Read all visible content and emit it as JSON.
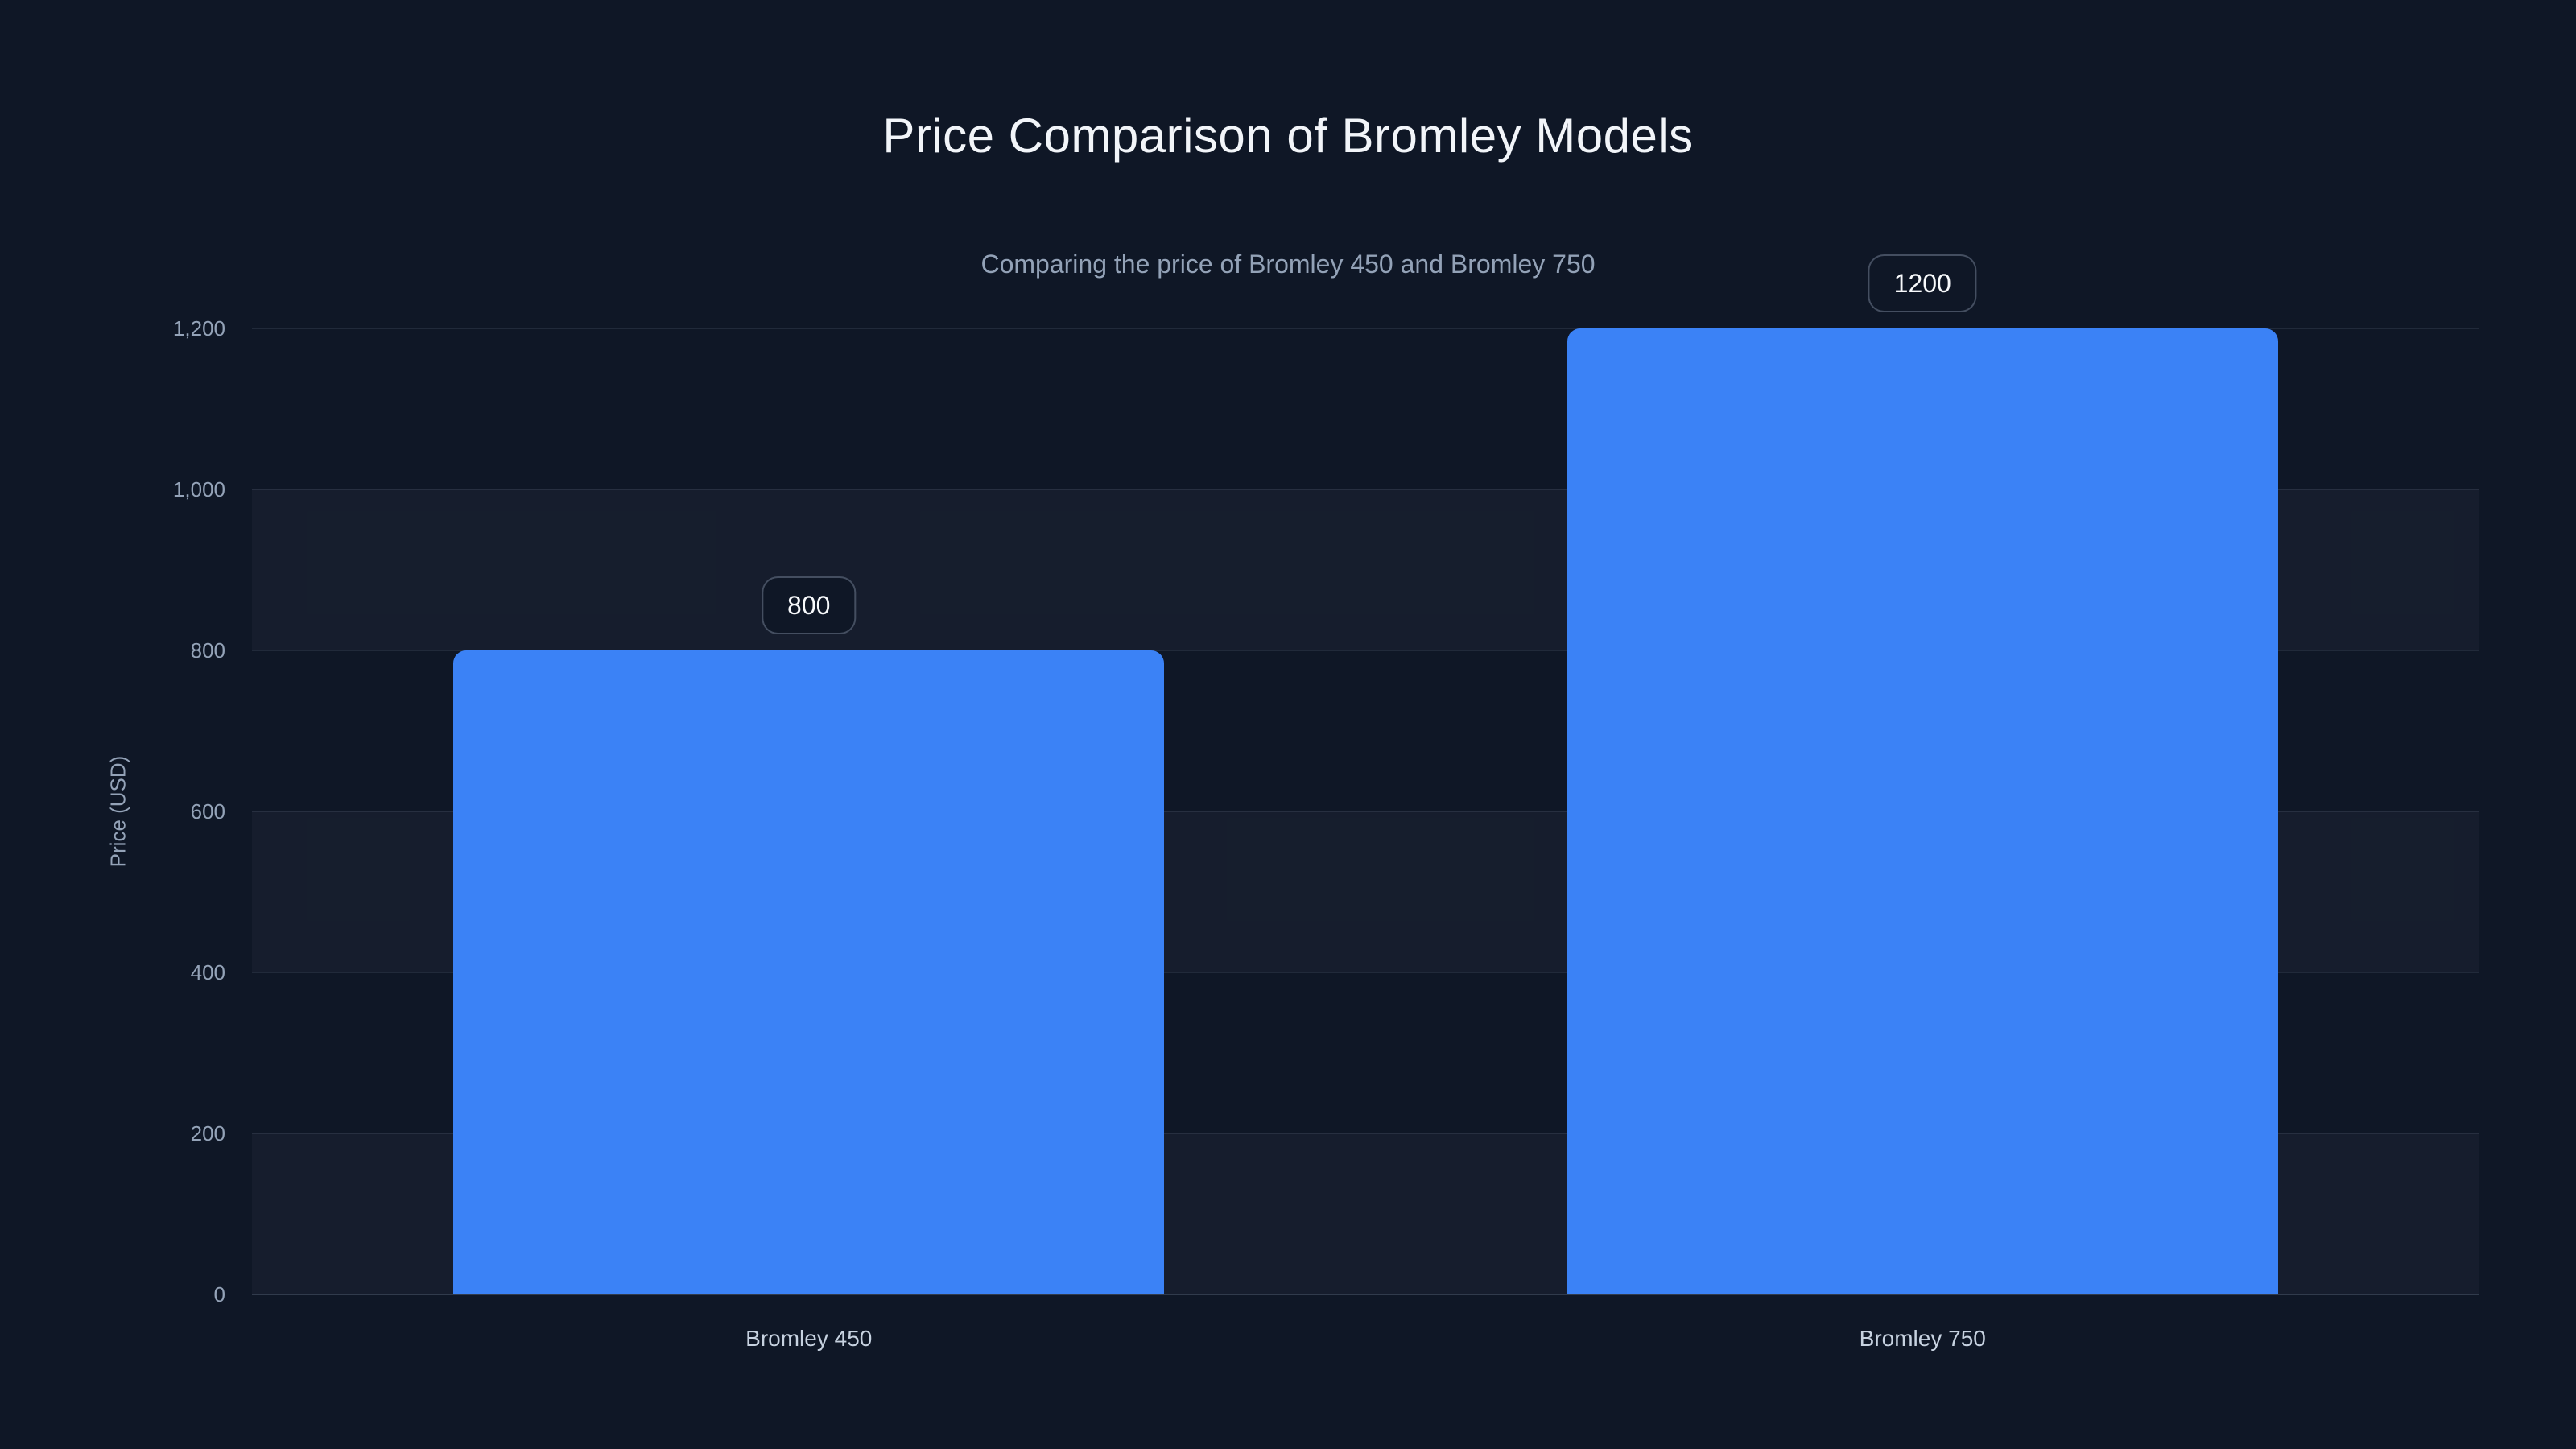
{
  "header": {
    "title": "Price Comparison of Bromley Models",
    "subtitle": "Comparing the price of Bromley 450 and Bromley 750"
  },
  "chart_data": {
    "type": "bar",
    "title": "Price Comparison of Bromley Models",
    "subtitle": "Comparing the price of Bromley 450 and Bromley 750",
    "categories": [
      "Bromley 450",
      "Bromley 750"
    ],
    "values": [
      800,
      1200
    ],
    "value_labels": [
      "800",
      "1200"
    ],
    "xlabel": "",
    "ylabel": "Price (USD)",
    "ylim": [
      0,
      1200
    ],
    "ytick_step": 200,
    "ytick_labels": [
      "0",
      "200",
      "400",
      "600",
      "800",
      "1,000",
      "1,200"
    ],
    "grid": true,
    "legend": "none",
    "colors": {
      "background": "#0f1726",
      "bar": "#3b82f6",
      "title": "#f2f5f9",
      "subtitle": "#93a2b7",
      "tick_label": "#94a3b8",
      "category_label": "#c7d2e0",
      "gridline": "rgba(148,163,184,0.14)",
      "band_alt": "rgba(148,163,184,0.05)",
      "badge_border": "rgba(148,163,184,0.40)",
      "badge_text": "#f8fafc"
    }
  }
}
